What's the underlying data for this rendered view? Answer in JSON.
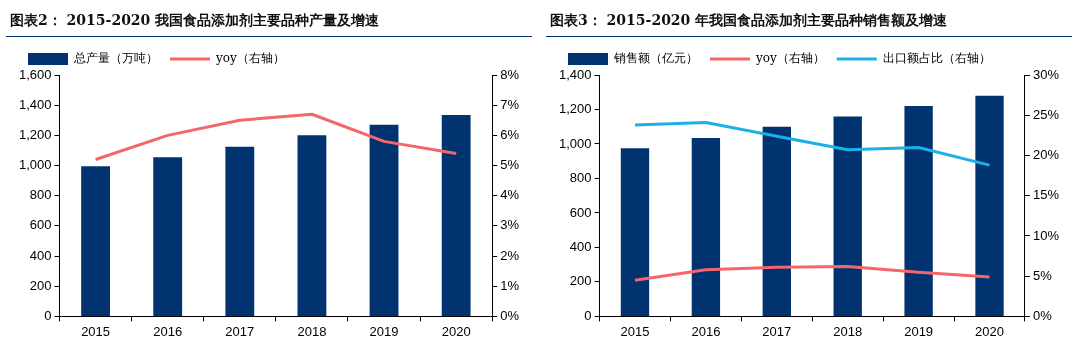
{
  "chart_data": [
    {
      "type": "bar",
      "title": "图表2：  2015-2020 我国食品添加剂主要品种产量及增速",
      "categories": [
        "2015",
        "2016",
        "2017",
        "2018",
        "2019",
        "2020"
      ],
      "series": [
        {
          "name": "总产量（万吨）",
          "color": "#00336f",
          "values": [
            995,
            1055,
            1125,
            1200,
            1270,
            1335
          ]
        },
        {
          "name": "yoy（右轴）",
          "type": "line",
          "axis": "y2",
          "color": "#f4666a",
          "values": [
            5.2,
            6.0,
            6.5,
            6.7,
            5.8,
            5.4
          ]
        }
      ],
      "ylim": [
        0,
        1600
      ],
      "yticks": [
        0,
        200,
        400,
        600,
        800,
        {
          "value": 1000,
          "label": "1,000"
        },
        {
          "value": 1200,
          "label": "1,200"
        },
        {
          "value": 1400,
          "label": "1,400"
        },
        {
          "value": 1600,
          "label": "1,600"
        }
      ],
      "y2lim": [
        0,
        8
      ],
      "y2ticks": [
        {
          "value": 0,
          "label": "0%"
        },
        {
          "value": 1,
          "label": "1%"
        },
        {
          "value": 2,
          "label": "2%"
        },
        {
          "value": 3,
          "label": "3%"
        },
        {
          "value": 4,
          "label": "4%"
        },
        {
          "value": 5,
          "label": "5%"
        },
        {
          "value": 6,
          "label": "6%"
        },
        {
          "value": 7,
          "label": "7%"
        },
        {
          "value": 8,
          "label": "8%"
        }
      ],
      "grid": false,
      "legend": "top",
      "marker": "none"
    },
    {
      "type": "bar",
      "title": "图表3：  2015-2020 年我国食品添加剂主要品种销售额及增速",
      "categories": [
        "2015",
        "2016",
        "2017",
        "2018",
        "2019",
        "2020"
      ],
      "series": [
        {
          "name": "销售额（亿元）",
          "color": "#00336f",
          "values": [
            975,
            1035,
            1100,
            1160,
            1220,
            1280
          ]
        },
        {
          "name": "yoy（右轴）",
          "type": "line",
          "axis": "y2",
          "color": "#f4666a",
          "values": [
            4.5,
            5.8,
            6.1,
            6.2,
            5.5,
            4.9
          ]
        },
        {
          "name": "出口额占比（右轴）",
          "type": "line",
          "axis": "y2",
          "color": "#1cb0e8",
          "values": [
            23.8,
            24.1,
            22.4,
            20.7,
            21.0,
            18.8
          ]
        }
      ],
      "ylim": [
        0,
        1400
      ],
      "yticks": [
        0,
        200,
        400,
        600,
        800,
        {
          "value": 1000,
          "label": "1,000"
        },
        {
          "value": 1200,
          "label": "1,200"
        },
        {
          "value": 1400,
          "label": "1,400"
        }
      ],
      "y2lim": [
        0,
        30
      ],
      "y2ticks": [
        {
          "value": 0,
          "label": "0%"
        },
        {
          "value": 5,
          "label": "5%"
        },
        {
          "value": 10,
          "label": "10%"
        },
        {
          "value": 15,
          "label": "15%"
        },
        {
          "value": 20,
          "label": "20%"
        },
        {
          "value": 25,
          "label": "25%"
        },
        {
          "value": 30,
          "label": "30%"
        }
      ],
      "grid": false,
      "legend": "top",
      "marker": "none"
    }
  ]
}
